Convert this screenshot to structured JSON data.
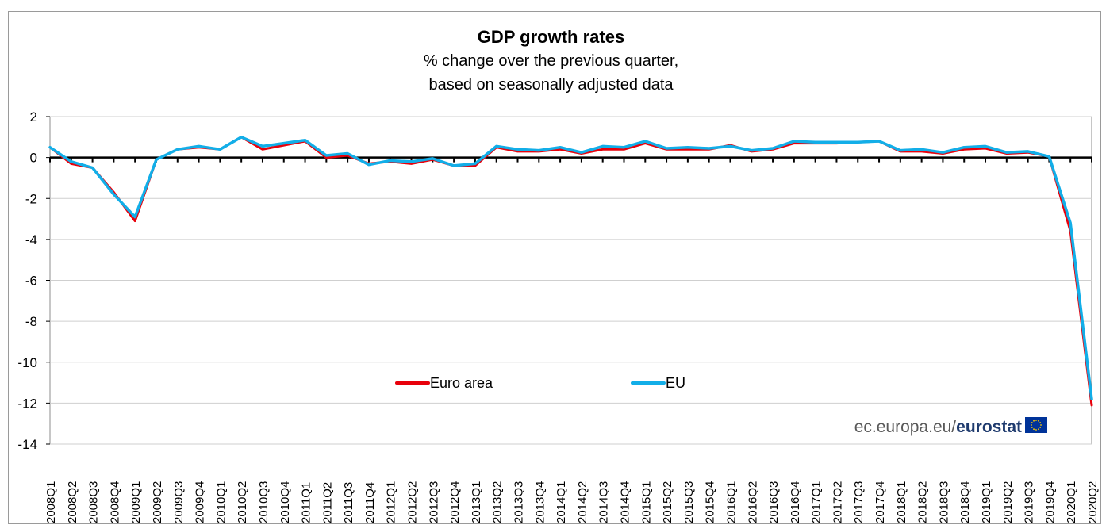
{
  "chart_data": {
    "type": "line",
    "title": "GDP growth rates",
    "subtitle": [
      "% change over the previous quarter,",
      "based on seasonally adjusted data"
    ],
    "xlabel": "",
    "ylabel": "",
    "ylim": [
      -14,
      2
    ],
    "yticks": [
      2,
      0,
      -2,
      -4,
      -6,
      -8,
      -10,
      -12,
      -14
    ],
    "grid": true,
    "legend_placement": "bottom-center",
    "x": [
      "2008Q1",
      "2008Q2",
      "2008Q3",
      "2008Q4",
      "2009Q1",
      "2009Q2",
      "2009Q3",
      "2009Q4",
      "2010Q1",
      "2010Q2",
      "2010Q3",
      "2010Q4",
      "2011Q1",
      "2011Q2",
      "2011Q3",
      "2011Q4",
      "2012Q1",
      "2012Q2",
      "2012Q3",
      "2012Q4",
      "2013Q1",
      "2013Q2",
      "2013Q3",
      "2013Q4",
      "2014Q1",
      "2014Q2",
      "2014Q3",
      "2014Q4",
      "2015Q1",
      "2015Q2",
      "2015Q3",
      "2015Q4",
      "2016Q1",
      "2016Q2",
      "2016Q3",
      "2016Q4",
      "2017Q1",
      "2017Q2",
      "2017Q3",
      "2017Q4",
      "2018Q1",
      "2018Q2",
      "2018Q3",
      "2018Q4",
      "2019Q1",
      "2019Q2",
      "2019Q3",
      "2019Q4",
      "2020Q1",
      "2020Q2"
    ],
    "series": [
      {
        "name": "Euro area",
        "color": "#e8000b",
        "values": [
          0.5,
          -0.3,
          -0.5,
          -1.7,
          -3.1,
          -0.1,
          0.4,
          0.5,
          0.4,
          1.0,
          0.4,
          0.6,
          0.8,
          0.0,
          0.1,
          -0.3,
          -0.2,
          -0.3,
          -0.1,
          -0.4,
          -0.4,
          0.5,
          0.3,
          0.3,
          0.4,
          0.2,
          0.4,
          0.4,
          0.7,
          0.4,
          0.4,
          0.4,
          0.6,
          0.3,
          0.4,
          0.7,
          0.7,
          0.7,
          0.75,
          0.8,
          0.3,
          0.3,
          0.2,
          0.4,
          0.45,
          0.2,
          0.25,
          0.05,
          -3.6,
          -12.1
        ]
      },
      {
        "name": "EU",
        "color": "#12aee8",
        "values": [
          0.5,
          -0.2,
          -0.5,
          -1.8,
          -2.9,
          -0.1,
          0.4,
          0.55,
          0.4,
          1.0,
          0.55,
          0.7,
          0.85,
          0.1,
          0.2,
          -0.35,
          -0.15,
          -0.2,
          -0.05,
          -0.4,
          -0.3,
          0.55,
          0.4,
          0.35,
          0.5,
          0.25,
          0.55,
          0.5,
          0.8,
          0.45,
          0.5,
          0.45,
          0.55,
          0.35,
          0.45,
          0.8,
          0.75,
          0.75,
          0.75,
          0.8,
          0.35,
          0.4,
          0.25,
          0.5,
          0.55,
          0.25,
          0.3,
          0.05,
          -3.2,
          -11.8
        ]
      }
    ]
  },
  "branding": {
    "prefix": "ec.europa.eu/",
    "name": "eurostat"
  },
  "colors": {
    "eu_flag": "#003399",
    "eu_stars": "#ffcc00",
    "grid": "#cfcfcf",
    "zero_line": "#000000"
  }
}
